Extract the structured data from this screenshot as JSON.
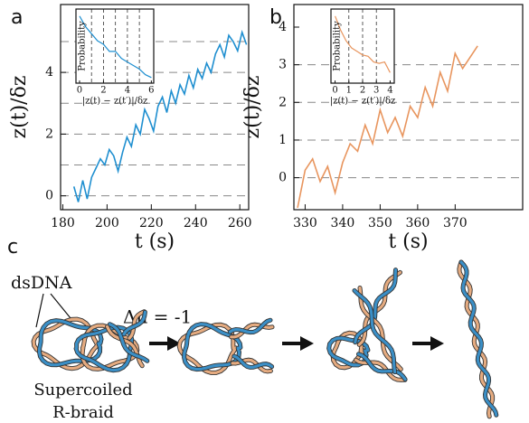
{
  "chart_data": [
    {
      "type": "line",
      "xlabel": "t (s)",
      "ylabel": "z(t)/δz",
      "color": "#1f8fd0",
      "x": [
        185,
        187,
        189,
        191,
        193,
        195,
        197,
        199,
        201,
        203,
        205,
        207,
        209,
        211,
        213,
        215,
        217,
        219,
        221,
        223,
        225,
        227,
        229,
        231,
        233,
        235,
        237,
        239,
        241,
        243,
        245,
        247,
        249,
        251,
        253,
        255,
        257,
        259,
        261,
        263
      ],
      "values": [
        0.3,
        -0.2,
        0.5,
        -0.1,
        0.6,
        0.9,
        1.2,
        1.0,
        1.5,
        1.3,
        0.8,
        1.4,
        1.9,
        1.6,
        2.3,
        2.0,
        2.8,
        2.5,
        2.1,
        2.9,
        3.2,
        2.7,
        3.4,
        3.0,
        3.6,
        3.3,
        3.9,
        3.5,
        4.1,
        3.8,
        4.3,
        4.0,
        4.6,
        4.9,
        4.5,
        5.2,
        5.0,
        4.7,
        5.3,
        4.9
      ],
      "xlim": [
        179,
        264
      ],
      "xticks": [
        180,
        200,
        220,
        240,
        260
      ],
      "ylim": [
        -0.45,
        6.2
      ],
      "yticks": [
        0,
        2,
        4
      ],
      "hlines": [
        0,
        1,
        2,
        3,
        4,
        5
      ]
    },
    {
      "type": "line",
      "xlabel": "|z(t) − z(t′)|/δz",
      "ylabel": "Probability",
      "color": "#1f8fd0",
      "x": [
        0,
        0.5,
        1,
        1.5,
        2,
        2.5,
        3,
        3.5,
        4,
        4.5,
        5,
        5.5,
        6
      ],
      "values": [
        0.95,
        0.8,
        0.7,
        0.6,
        0.55,
        0.45,
        0.45,
        0.35,
        0.3,
        0.25,
        0.2,
        0.12,
        0.08
      ],
      "xlim": [
        -0.3,
        6.2
      ],
      "xticks": [
        0,
        2,
        4,
        6
      ],
      "ylim": [
        0,
        1.05
      ],
      "vlines": [
        1,
        2,
        3,
        4,
        5
      ]
    },
    {
      "type": "line",
      "xlabel": "t (s)",
      "ylabel": "z(t)/δz",
      "color": "#e8955e",
      "x": [
        328,
        330,
        332,
        334,
        336,
        338,
        340,
        342,
        344,
        346,
        348,
        350,
        352,
        354,
        356,
        358,
        360,
        362,
        364,
        366,
        368,
        370,
        372,
        374,
        376
      ],
      "values": [
        -0.8,
        0.2,
        0.5,
        -0.1,
        0.3,
        -0.4,
        0.4,
        0.9,
        0.7,
        1.4,
        0.9,
        1.8,
        1.2,
        1.6,
        1.1,
        1.9,
        1.6,
        2.4,
        1.9,
        2.8,
        2.3,
        3.3,
        2.9,
        3.2,
        3.5
      ],
      "xlim": [
        327,
        388
      ],
      "xticks": [
        330,
        340,
        350,
        360,
        370
      ],
      "ylim": [
        -0.85,
        4.6
      ],
      "yticks": [
        0,
        1,
        2,
        3,
        4
      ],
      "hlines": [
        0,
        1,
        2,
        3
      ]
    },
    {
      "type": "line",
      "xlabel": "|z(t) − z(t′)|/δz",
      "ylabel": "Probability",
      "color": "#e8955e",
      "x": [
        0,
        0.4,
        0.8,
        1.2,
        1.6,
        2,
        2.4,
        2.8,
        3.2,
        3.6,
        4
      ],
      "values": [
        0.95,
        0.75,
        0.6,
        0.5,
        0.45,
        0.4,
        0.38,
        0.3,
        0.28,
        0.3,
        0.15
      ],
      "xlim": [
        -0.3,
        4.3
      ],
      "xticks": [
        0,
        1,
        2,
        3,
        4
      ],
      "ylim": [
        0,
        1.05
      ],
      "vlines": [
        1,
        2,
        3
      ]
    }
  ],
  "panel_labels": [
    "a",
    "b",
    "c"
  ],
  "diagram": {
    "strand_label": "dsDNA",
    "step_label": "Δn = -1",
    "caption": [
      "Supercoiled",
      "R-braid"
    ]
  }
}
